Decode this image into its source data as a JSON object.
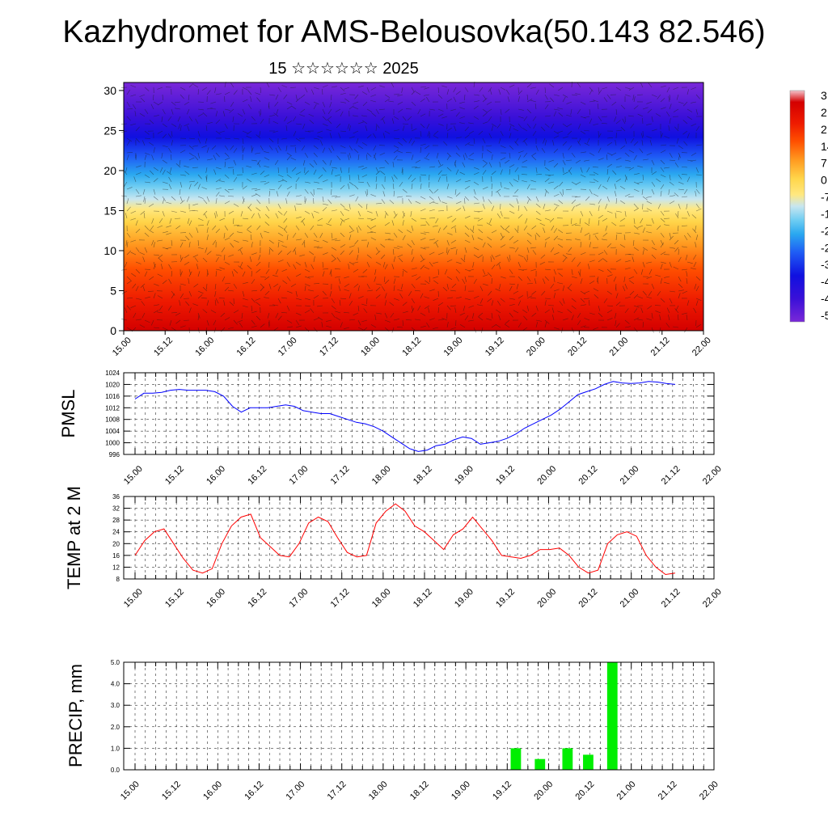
{
  "page": {
    "title": "Kazhydromet for AMS-Belousovka(50.143 82.546)",
    "subtitle": "15 ☆☆☆☆☆☆ 2025"
  },
  "chart_data": [
    {
      "type": "heatmap",
      "name": "cross-section",
      "x_ticks": [
        "15.00",
        "15.12",
        "16.00",
        "16.12",
        "17.00",
        "17.12",
        "18.00",
        "18.12",
        "19.00",
        "19.12",
        "20.00",
        "20.12",
        "21.00",
        "21.12",
        "22.00"
      ],
      "y_ticks": [
        0,
        5,
        10,
        15,
        20,
        25,
        30
      ],
      "ylim": [
        0,
        31
      ],
      "colorbar_labels": [
        "3",
        "2",
        "2",
        "14",
        "7",
        "0",
        "-7",
        "-1",
        "-2",
        "-2",
        "-3",
        "-4",
        "-4",
        "-5"
      ],
      "colors": {
        "hot": "#d40000",
        "warm": "#ff8c1a",
        "yellow": "#ffe066",
        "cyan": "#4fc3f7",
        "blue": "#1a1aff",
        "violet": "#6a1fd6"
      }
    },
    {
      "type": "line",
      "name": "pmsl",
      "ylabel": "PMSL",
      "color": "#0000ff",
      "ylim": [
        996,
        1024
      ],
      "y_ticks": [
        996,
        1000,
        1004,
        1008,
        1012,
        1016,
        1020,
        1024
      ],
      "x_ticks": [
        "15.00",
        "15.12",
        "16.00",
        "16.12",
        "17.00",
        "17.12",
        "18.00",
        "18.12",
        "19.00",
        "19.12",
        "20.00",
        "20.12",
        "21.00",
        "21.12",
        "22.00"
      ],
      "values": [
        1015,
        1017,
        1017,
        1017.3,
        1018,
        1018.3,
        1018,
        1018,
        1018,
        1017.5,
        1016,
        1012.5,
        1010.5,
        1012,
        1012,
        1012,
        1012.5,
        1013,
        1012.5,
        1011,
        1010.5,
        1010,
        1010,
        1009,
        1008,
        1007,
        1006.5,
        1005.5,
        1004,
        1002,
        1000,
        998,
        997,
        997.5,
        999,
        999.5,
        1001,
        1002,
        1001.5,
        999.5,
        1000,
        1000.5,
        1001.5,
        1003,
        1005,
        1006.5,
        1008,
        1009.5,
        1011.5,
        1014,
        1016.5,
        1017.5,
        1018.5,
        1020,
        1021,
        1020.5,
        1020.3,
        1020.5,
        1021,
        1020.8,
        1020.3,
        1020
      ]
    },
    {
      "type": "line",
      "name": "temp",
      "ylabel": "TEMP at 2 M",
      "color": "#ff0000",
      "ylim": [
        8,
        36
      ],
      "y_ticks": [
        8,
        12,
        16,
        20,
        24,
        28,
        32,
        36
      ],
      "x_ticks": [
        "15.00",
        "15.12",
        "16.00",
        "16.12",
        "17.00",
        "17.12",
        "18.00",
        "18.12",
        "19.00",
        "19.12",
        "20.00",
        "20.12",
        "21.00",
        "21.12",
        "22.00"
      ],
      "values": [
        16,
        21,
        24,
        25,
        20,
        15,
        11,
        10,
        11.5,
        20,
        26,
        29,
        30,
        22,
        19,
        16,
        15.5,
        20,
        27,
        29,
        27.5,
        22,
        17,
        15.5,
        16,
        27,
        31,
        33.5,
        31,
        26,
        24,
        21,
        18,
        23,
        25,
        29,
        25,
        21,
        16,
        15.5,
        15,
        16,
        18,
        18,
        18.5,
        16,
        12,
        10,
        11,
        20,
        23,
        24,
        22.5,
        16,
        12,
        9.5,
        10
      ]
    },
    {
      "type": "bar",
      "name": "precip",
      "ylabel": "PRECIP, mm",
      "color": "#00ee00",
      "ylim": [
        0,
        5
      ],
      "y_ticks": [
        "0.0",
        "1.0",
        "2.0",
        "3.0",
        "4.0",
        "5.0"
      ],
      "x_ticks": [
        "15.00",
        "15.12",
        "16.00",
        "16.12",
        "17.00",
        "17.12",
        "18.00",
        "18.12",
        "19.00",
        "19.12",
        "20.00",
        "20.12",
        "21.00",
        "21.12",
        "22.00"
      ],
      "bars": [
        {
          "x": 19.13,
          "value": 1.0
        },
        {
          "x": 19.2,
          "value": 0.5
        },
        {
          "x": 20.04,
          "value": 1.0
        },
        {
          "x": 20.1,
          "value": 0.7
        },
        {
          "x": 20.17,
          "value": 5.0
        }
      ]
    }
  ]
}
